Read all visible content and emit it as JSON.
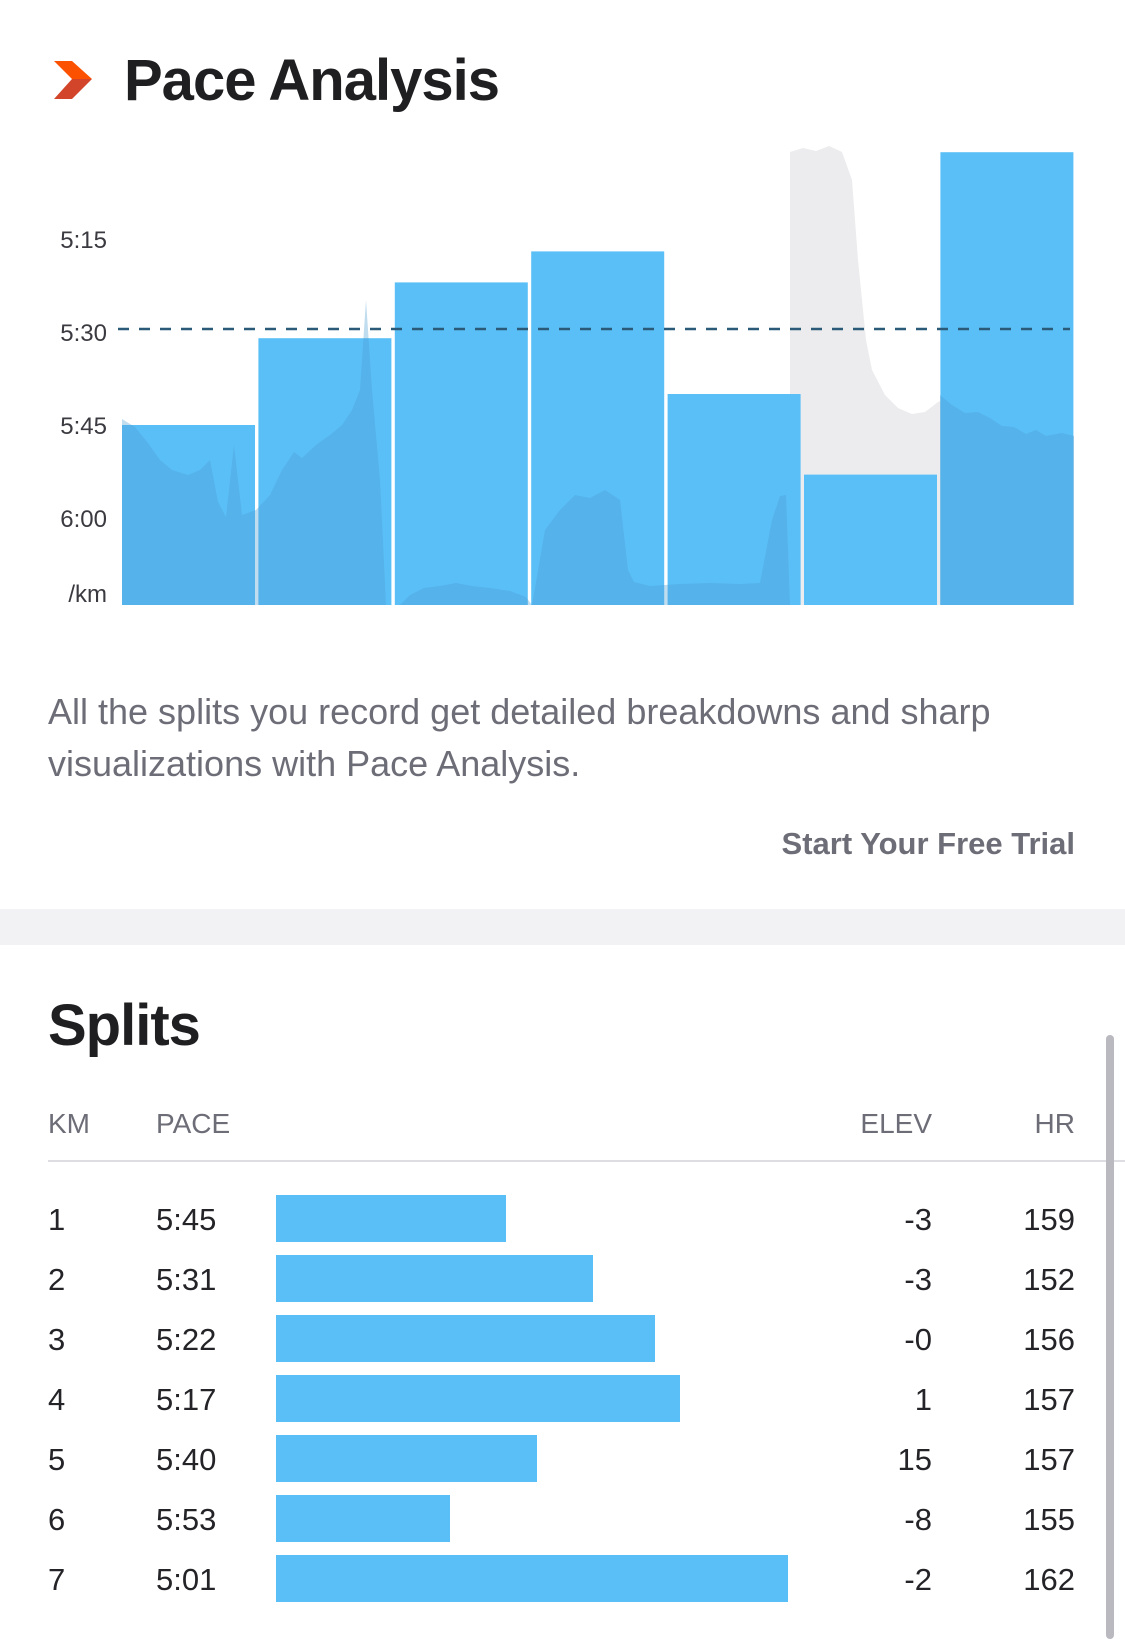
{
  "header": {
    "title": "Pace Analysis",
    "logo_icon": "chevron-logo-icon"
  },
  "chart_data": {
    "type": "bar",
    "categories": [
      "1",
      "2",
      "3",
      "4",
      "5",
      "6",
      "7"
    ],
    "values": [
      "5:45",
      "5:31",
      "5:22",
      "5:17",
      "5:40",
      "5:53",
      "5:01"
    ],
    "y_axis_ticks": [
      "5:15",
      "5:30",
      "5:45",
      "6:00"
    ],
    "y_unit": "/km",
    "average_line": "5:30",
    "colors": {
      "bars": "#5bbff7",
      "average_line": "#2a5a78",
      "elevation_area": "#ececee"
    }
  },
  "description": "All the splits you record get detailed breakdowns and sharp visualizations with Pace Analysis.",
  "cta_label": "Start Your Free Trial",
  "splits": {
    "title": "Splits",
    "columns": {
      "km": "KM",
      "pace": "PACE",
      "elev": "ELEV",
      "hr": "HR"
    },
    "rows": [
      {
        "km": "1",
        "pace": "5:45",
        "elev": "-3",
        "hr": "159",
        "bar_fraction": 0.45
      },
      {
        "km": "2",
        "pace": "5:31",
        "elev": "-3",
        "hr": "152",
        "bar_fraction": 0.62
      },
      {
        "km": "3",
        "pace": "5:22",
        "elev": "-0",
        "hr": "156",
        "bar_fraction": 0.74
      },
      {
        "km": "4",
        "pace": "5:17",
        "elev": "1",
        "hr": "157",
        "bar_fraction": 0.79
      },
      {
        "km": "5",
        "pace": "5:40",
        "elev": "15",
        "hr": "157",
        "bar_fraction": 0.51
      },
      {
        "km": "6",
        "pace": "5:53",
        "elev": "-8",
        "hr": "155",
        "bar_fraction": 0.34
      },
      {
        "km": "7",
        "pace": "5:01",
        "elev": "-2",
        "hr": "162",
        "bar_fraction": 1.0
      }
    ]
  }
}
